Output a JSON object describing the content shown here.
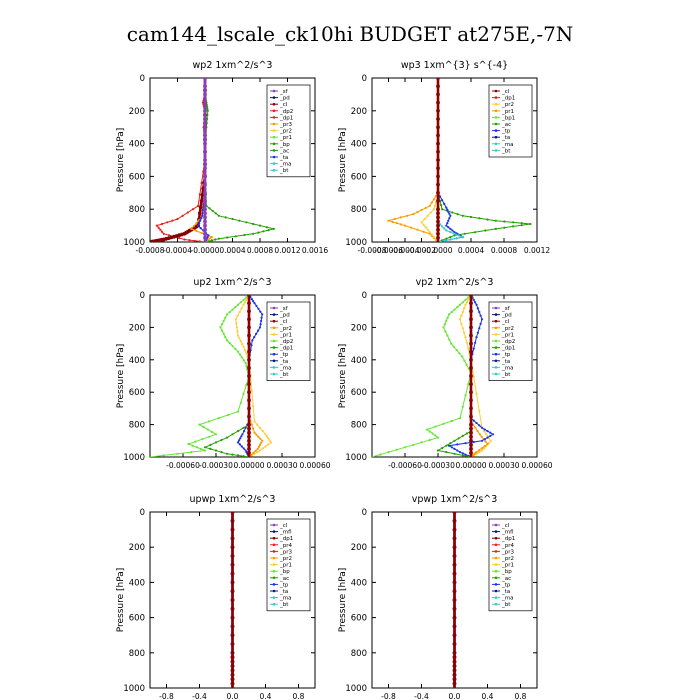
{
  "figure_title": "cam144_lscale_ck10hi  BUDGET at275E,-7N",
  "y_axis_label": "Pressure [hPa]",
  "colors": {
    "purple": "#8a3fb8",
    "darkred": "#8b0000",
    "red": "#e8201a",
    "orange": "#ff9900",
    "gold": "#ffcc33",
    "lightgreen": "#66e533",
    "green": "#22a000",
    "blue": "#1a33e6",
    "navy": "#0a1a80",
    "cyan": "#33cccc",
    "bt": "#8b1a3a"
  },
  "chart_data": [
    {
      "type": "line",
      "title": "wp2  1xm^2/s^3",
      "ylim": [
        1000,
        0
      ],
      "yticks": [
        0,
        200,
        400,
        600,
        800,
        1000
      ],
      "xlim": [
        -0.0008,
        0.0016
      ],
      "xticks": [
        -0.0008,
        -0.0004,
        0.0,
        0.0004,
        0.0008,
        0.0012,
        0.0016
      ],
      "xticklabels": [
        "-0.0008",
        "-0.0004",
        "-0.0000",
        "0.0004",
        "0.0008",
        "0.0012",
        "0.0016"
      ],
      "legend": [
        "_sf",
        "_pd",
        "_cl",
        "_dp2",
        "_dp1",
        "_pr3",
        "_pr2",
        "_pr1",
        "_bp",
        "_ac",
        "_ta",
        "_ma",
        "_bt"
      ],
      "legend_colors": [
        "purple",
        "navy",
        "darkred",
        "red",
        "red",
        "orange",
        "gold",
        "lightgreen",
        "green",
        "green",
        "blue",
        "cyan",
        "cyan"
      ],
      "series": [
        {
          "color": "green",
          "x": [
            0,
            0,
            2e-05,
            4e-05,
            2e-05,
            0,
            2e-05,
            0.0002,
            0.0006,
            0.001,
            0.0007,
            0.0002,
            0
          ],
          "y": [
            0,
            100,
            150,
            200,
            300,
            500,
            780,
            840,
            880,
            920,
            950,
            980,
            1000
          ]
        },
        {
          "color": "red",
          "x": [
            0,
            0,
            -3e-05,
            0,
            -2e-05,
            0,
            -0.0001,
            -0.0004,
            -0.0007,
            -0.0006,
            -0.0003,
            0
          ],
          "y": [
            0,
            100,
            150,
            200,
            300,
            500,
            780,
            860,
            900,
            950,
            985,
            1000
          ]
        },
        {
          "color": "darkred",
          "x": [
            0,
            0,
            -0.0001,
            -0.0003,
            -0.0006,
            -0.0008
          ],
          "y": [
            0,
            600,
            900,
            950,
            985,
            1000
          ]
        },
        {
          "color": "orange",
          "x": [
            0,
            0,
            -5e-05,
            -0.0002,
            0.0001,
            0
          ],
          "y": [
            0,
            700,
            850,
            920,
            970,
            1000
          ]
        },
        {
          "color": "blue",
          "x": [
            0,
            0,
            -4e-05,
            -0.0001,
            5e-05,
            0
          ],
          "y": [
            0,
            700,
            840,
            900,
            960,
            1000
          ]
        },
        {
          "color": "purple",
          "x": [
            0,
            0,
            0,
            0
          ],
          "y": [
            0,
            400,
            800,
            1000
          ]
        }
      ]
    },
    {
      "type": "line",
      "title": "wp3  1xm^{3} s^{-4}",
      "ylim": [
        1000,
        0
      ],
      "yticks": [
        0,
        200,
        400,
        600,
        800,
        1000
      ],
      "xlim": [
        -0.0008,
        0.0012
      ],
      "xticks": [
        -0.0008,
        -0.0006,
        -0.0004,
        -0.0002,
        0.0,
        0.0004,
        0.0008,
        0.0012
      ],
      "xticklabels": [
        "-0.0008",
        "-0.0006",
        "-0.0004",
        "-0.0002",
        "-0.0000",
        "0.0004",
        "0.0008",
        "0.0012"
      ],
      "legend": [
        "_cl",
        "_dp1",
        "_pr2",
        "_pr1",
        "_bp1",
        "_ac",
        "_tp",
        "_ta",
        "_ma",
        "_bt"
      ],
      "legend_colors": [
        "darkred",
        "red",
        "gold",
        "orange",
        "lightgreen",
        "green",
        "blue",
        "navy",
        "cyan",
        "cyan"
      ],
      "series": [
        {
          "color": "green",
          "x": [
            0,
            0,
            5e-05,
            0.0003,
            0.0007,
            0.00112,
            0.0007,
            0.0002,
            0
          ],
          "y": [
            0,
            700,
            800,
            840,
            870,
            890,
            920,
            960,
            1000
          ]
        },
        {
          "color": "orange",
          "x": [
            0,
            0,
            -0.0001,
            -0.0003,
            -0.0006,
            -0.0004,
            -0.0001,
            0
          ],
          "y": [
            0,
            700,
            780,
            830,
            870,
            900,
            950,
            1000
          ]
        },
        {
          "color": "gold",
          "x": [
            0,
            0,
            -5e-05,
            -0.0002,
            -0.0001,
            0
          ],
          "y": [
            0,
            720,
            800,
            880,
            940,
            1000
          ]
        },
        {
          "color": "blue",
          "x": [
            0,
            0,
            0.0001,
            0.00015,
            0.0001,
            0.0002,
            0.0003,
            0
          ],
          "y": [
            0,
            700,
            790,
            840,
            900,
            940,
            970,
            1000
          ]
        },
        {
          "color": "cyan",
          "x": [
            0,
            0,
            0.0001,
            0.0003,
            0
          ],
          "y": [
            0,
            880,
            930,
            970,
            1000
          ]
        },
        {
          "color": "darkred",
          "x": [
            0,
            0,
            0,
            0
          ],
          "y": [
            0,
            400,
            800,
            1000
          ]
        }
      ]
    },
    {
      "type": "line",
      "title": "up2  1xm^2/s^3",
      "ylim": [
        1000,
        0
      ],
      "yticks": [
        0,
        200,
        400,
        600,
        800,
        1000
      ],
      "xlim": [
        -0.0009,
        0.0006
      ],
      "xticks": [
        -0.0006,
        -0.0003,
        0.0,
        0.0003,
        0.0006
      ],
      "xticklabels": [
        "-0.00060",
        "-0.00030",
        "0.00000",
        "0.00030",
        "0.00060"
      ],
      "legend": [
        "_sf",
        "_pd",
        "_cl",
        "_pr2",
        "_pr1",
        "_dp2",
        "_dp1",
        "_tp",
        "_ta",
        "_ma",
        "_bt"
      ],
      "legend_colors": [
        "purple",
        "navy",
        "darkred",
        "orange",
        "gold",
        "lightgreen",
        "green",
        "blue",
        "navy",
        "cyan",
        "cyan"
      ],
      "series": [
        {
          "color": "blue",
          "x": [
            0,
            5e-05,
            0.00012,
            0.0001,
            3e-05,
            0,
            0,
            -6e-05,
            -0.0001,
            -3e-05,
            0
          ],
          "y": [
            0,
            50,
            120,
            200,
            280,
            400,
            780,
            860,
            910,
            960,
            1000
          ]
        },
        {
          "color": "gold",
          "x": [
            0,
            -5e-05,
            -0.00012,
            -0.0001,
            -5e-05,
            0,
            5e-05,
            0.00015,
            0.0002,
            0.0001,
            0
          ],
          "y": [
            0,
            60,
            150,
            250,
            320,
            400,
            780,
            860,
            910,
            960,
            1000
          ]
        },
        {
          "color": "orange",
          "x": [
            0,
            0,
            5e-05,
            0.00012,
            8e-05,
            0
          ],
          "y": [
            0,
            750,
            850,
            900,
            950,
            1000
          ]
        },
        {
          "color": "lightgreen",
          "x": [
            0,
            -0.0001,
            -0.0002,
            -0.00026,
            -0.0002,
            -0.0001,
            -3e-05,
            0,
            -0.0001,
            -0.00045,
            -0.0003,
            -0.00055,
            -0.0004,
            -0.0009
          ],
          "y": [
            0,
            60,
            120,
            200,
            280,
            350,
            420,
            500,
            720,
            800,
            860,
            920,
            960,
            1000
          ]
        },
        {
          "color": "green",
          "x": [
            0,
            0,
            -0.0002,
            -0.0004,
            -0.0002,
            0
          ],
          "y": [
            0,
            800,
            880,
            940,
            980,
            1000
          ]
        },
        {
          "color": "darkred",
          "x": [
            0,
            0,
            0,
            0
          ],
          "y": [
            0,
            400,
            800,
            1000
          ]
        }
      ]
    },
    {
      "type": "line",
      "title": "vp2  1xm^2/s^3",
      "ylim": [
        1000,
        0
      ],
      "yticks": [
        0,
        200,
        400,
        600,
        800,
        1000
      ],
      "xlim": [
        -0.0009,
        0.0006
      ],
      "xticks": [
        -0.0006,
        -0.0003,
        0.0,
        0.0003,
        0.0006
      ],
      "xticklabels": [
        "-0.00060",
        "-0.00030",
        "0.00000",
        "0.00030",
        "0.00060"
      ],
      "legend": [
        "_sf",
        "_pd",
        "_cl",
        "_pr2",
        "_pr1",
        "_dp2",
        "_dp1",
        "_tp",
        "_ta",
        "_ma",
        "_bt"
      ],
      "legend_colors": [
        "purple",
        "navy",
        "darkred",
        "orange",
        "gold",
        "lightgreen",
        "green",
        "blue",
        "navy",
        "cyan",
        "cyan"
      ],
      "series": [
        {
          "color": "lightgreen",
          "x": [
            0,
            -0.0001,
            -0.0002,
            -0.00025,
            -0.00018,
            -8e-05,
            0,
            -0.0001,
            -0.0004,
            -0.0003,
            -0.0006,
            -0.0009
          ],
          "y": [
            0,
            60,
            120,
            200,
            300,
            380,
            480,
            760,
            830,
            880,
            940,
            1000
          ]
        },
        {
          "color": "gold",
          "x": [
            0,
            -5e-05,
            -0.0001,
            -5e-05,
            0,
            0.0001,
            0.00018,
            0.0001,
            0
          ],
          "y": [
            0,
            60,
            150,
            260,
            400,
            820,
            900,
            960,
            1000
          ]
        },
        {
          "color": "orange",
          "x": [
            0,
            0,
            8e-05,
            0.00015,
            5e-05,
            0
          ],
          "y": [
            0,
            780,
            860,
            920,
            970,
            1000
          ]
        },
        {
          "color": "blue",
          "x": [
            0,
            5e-05,
            0.0001,
            5e-05,
            0,
            0,
            0.0001,
            0.0002,
            0.0001,
            -0.0002,
            -0.0001,
            0
          ],
          "y": [
            0,
            60,
            150,
            260,
            400,
            760,
            820,
            860,
            900,
            930,
            970,
            1000
          ]
        },
        {
          "color": "green",
          "x": [
            0,
            0,
            -0.00015,
            -0.0003,
            0
          ],
          "y": [
            0,
            840,
            900,
            960,
            1000
          ]
        },
        {
          "color": "darkred",
          "x": [
            0,
            0,
            0,
            0
          ],
          "y": [
            0,
            400,
            800,
            1000
          ]
        }
      ]
    },
    {
      "type": "line",
      "title": "upwp  1xm^2/s^3",
      "ylim": [
        1000,
        0
      ],
      "yticks": [
        0,
        200,
        400,
        600,
        800,
        1000
      ],
      "xlim": [
        -1,
        1
      ],
      "xticks": [
        -0.8,
        -0.4,
        0.0,
        0.4,
        0.8
      ],
      "xticklabels": [
        "-0.8",
        "-0.4",
        "0.0",
        "0.4",
        "0.8"
      ],
      "legend": [
        "_cl",
        "_mfl",
        "_dp1",
        "_pr4",
        "_pr3",
        "_pr2",
        "_pr1",
        "_bp",
        "_ac",
        "_tp",
        "_ta",
        "_ma",
        "_bt"
      ],
      "legend_colors": [
        "purple",
        "navy",
        "darkred",
        "red",
        "red",
        "orange",
        "gold",
        "lightgreen",
        "green",
        "blue",
        "navy",
        "cyan",
        "cyan"
      ],
      "series": [
        {
          "color": "purple",
          "x": [
            0,
            0,
            0,
            0
          ],
          "y": [
            0,
            400,
            800,
            1000
          ]
        },
        {
          "color": "darkred",
          "x": [
            0,
            0,
            0,
            0
          ],
          "y": [
            0,
            400,
            800,
            1000
          ]
        }
      ]
    },
    {
      "type": "line",
      "title": "vpwp  1xm^2/s^3",
      "ylim": [
        1000,
        0
      ],
      "yticks": [
        0,
        200,
        400,
        600,
        800,
        1000
      ],
      "xlim": [
        -1,
        1
      ],
      "xticks": [
        -0.8,
        -0.4,
        0.0,
        0.4,
        0.8
      ],
      "xticklabels": [
        "-0.8",
        "-0.4",
        "0.0",
        "0.4",
        "0.8"
      ],
      "legend": [
        "_cl",
        "_mfl",
        "_dp1",
        "_pr4",
        "_pr3",
        "_pr2",
        "_pr1",
        "_bp",
        "_ac",
        "_tp",
        "_ta",
        "_ma",
        "_bt"
      ],
      "legend_colors": [
        "purple",
        "navy",
        "darkred",
        "red",
        "red",
        "orange",
        "gold",
        "lightgreen",
        "green",
        "blue",
        "navy",
        "cyan",
        "cyan"
      ],
      "series": [
        {
          "color": "purple",
          "x": [
            0,
            0,
            0,
            0
          ],
          "y": [
            0,
            400,
            800,
            1000
          ]
        },
        {
          "color": "darkred",
          "x": [
            0,
            0,
            0,
            0
          ],
          "y": [
            0,
            400,
            800,
            1000
          ]
        }
      ]
    }
  ]
}
